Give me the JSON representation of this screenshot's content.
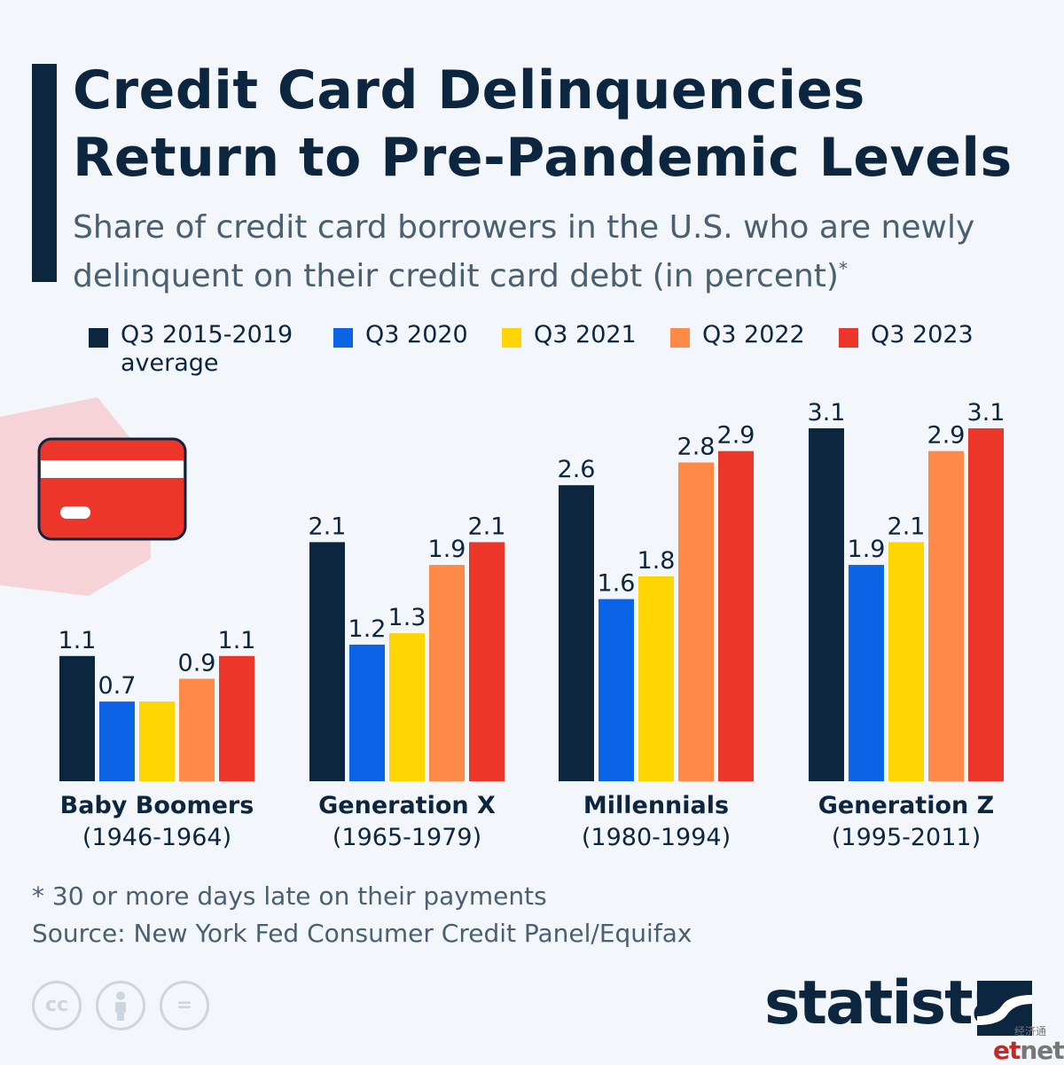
{
  "header": {
    "title_line1": "Credit Card Delinquencies",
    "title_line2": "Return to Pre-Pandemic Levels",
    "subtitle_line1": "Share of credit card borrowers in the U.S. who are newly",
    "subtitle_line2": "delinquent on their credit card debt (in percent)",
    "subtitle_mark": "*"
  },
  "legend": [
    {
      "line1": "Q3 2015-2019",
      "line2": "average",
      "color": "#0d2640"
    },
    {
      "line1": "Q3 2020",
      "line2": "",
      "color": "#0b63e5"
    },
    {
      "line1": "Q3 2021",
      "line2": "",
      "color": "#ffd500"
    },
    {
      "line1": "Q3 2022",
      "line2": "",
      "color": "#ff8a47"
    },
    {
      "line1": "Q3 2023",
      "line2": "",
      "color": "#eb3629"
    }
  ],
  "chart_data": {
    "type": "bar",
    "categories": [
      {
        "name": "Baby Boomers",
        "years": "(1946-1964)"
      },
      {
        "name": "Generation X",
        "years": "(1965-1979)"
      },
      {
        "name": "Millennials",
        "years": "(1980-1994)"
      },
      {
        "name": "Generation Z",
        "years": "(1995-2011)"
      }
    ],
    "series": [
      {
        "name": "Q3 2015-2019 average",
        "color": "#0d2640",
        "values": [
          1.1,
          2.1,
          2.6,
          3.1
        ]
      },
      {
        "name": "Q3 2020",
        "color": "#0b63e5",
        "values": [
          0.7,
          1.2,
          1.6,
          1.9
        ]
      },
      {
        "name": "Q3 2021",
        "color": "#ffd500",
        "values": [
          0.7,
          1.3,
          1.8,
          2.1
        ]
      },
      {
        "name": "Q3 2022",
        "color": "#ff8a47",
        "values": [
          0.9,
          1.9,
          2.8,
          2.9
        ]
      },
      {
        "name": "Q3 2023",
        "color": "#eb3629",
        "values": [
          1.1,
          2.1,
          2.9,
          3.1
        ]
      }
    ],
    "value_labels": [
      [
        "1.1",
        "0.7",
        "",
        "0.9",
        "1.1"
      ],
      [
        "2.1",
        "1.2",
        "1.3",
        "1.9",
        "2.1"
      ],
      [
        "2.6",
        "1.6",
        "1.8",
        "2.8",
        "2.9"
      ],
      [
        "3.1",
        "1.9",
        "2.1",
        "2.9",
        "3.1"
      ]
    ],
    "ylim": [
      0,
      3.1
    ],
    "legend_position": "top",
    "grid": false
  },
  "footer": {
    "footnote": "* 30 or more days late on their payments",
    "source": "Source: New York Fed Consumer Credit Panel/Equifax",
    "brand": "statista",
    "license_icons": [
      "cc-icon",
      "attribution-icon",
      "no-derivatives-icon"
    ],
    "license_glyphs": [
      "cc",
      "="
    ],
    "watermark_cjk": "经济通",
    "watermark_et": "et",
    "watermark_net": "net"
  }
}
